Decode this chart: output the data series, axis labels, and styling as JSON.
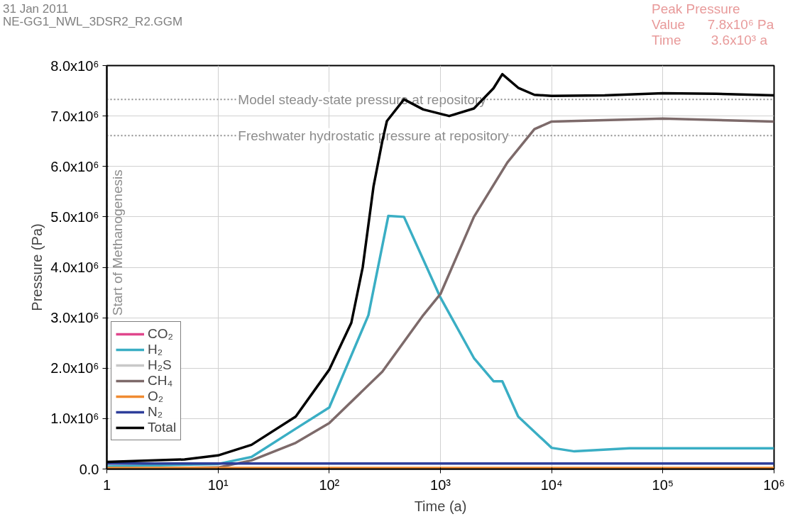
{
  "chart_data": {
    "type": "line",
    "xlabel": "Time (a)",
    "ylabel": "Pressure (Pa)",
    "log": "x",
    "grid": true,
    "legend": "bottom left",
    "line_style": "solid",
    "marker": "none",
    "xlim": [
      1,
      1000000
    ],
    "xticks": [
      1,
      {
        "value": 10,
        "label": "10¹"
      },
      {
        "value": 100,
        "label": "10²"
      },
      {
        "value": 1000,
        "label": "10³"
      },
      {
        "value": 10000,
        "label": "10⁴"
      },
      {
        "value": 100000,
        "label": "10⁵"
      },
      {
        "value": 1000000,
        "label": "10⁶"
      }
    ],
    "ylim": [
      0,
      8000000
    ],
    "yticks": [
      {
        "value": 0,
        "label": "0.0"
      },
      {
        "value": 1000000,
        "label": "1.0x10⁶"
      },
      {
        "value": 2000000,
        "label": "2.0x10⁶"
      },
      {
        "value": 3000000,
        "label": "3.0x10⁶"
      },
      {
        "value": 4000000,
        "label": "4.0x10⁶"
      },
      {
        "value": 5000000,
        "label": "5.0x10⁶"
      },
      {
        "value": 6000000,
        "label": "6.0x10⁶"
      },
      {
        "value": 7000000,
        "label": "7.0x10⁶"
      },
      {
        "value": 8000000,
        "label": "8.0x10⁶"
      }
    ],
    "series": [
      {
        "name": "CO₂",
        "color": "#e0468c",
        "values": [
          null
        ]
      },
      {
        "name": "H₂",
        "color": "#3aaec4",
        "x": [
          1,
          10,
          20,
          50,
          100,
          225,
          340,
          470,
          1000,
          2000,
          3000,
          3600,
          5000,
          10000,
          16000,
          50000,
          1000000
        ],
        "values": [
          50000,
          100000,
          240000,
          800000,
          1220000,
          3050000,
          5020000,
          5000000,
          3400000,
          2200000,
          1740000,
          1740000,
          1040000,
          420000,
          350000,
          410000,
          410000
        ]
      },
      {
        "name": "H₂S",
        "color": "#c8c8c8",
        "values": [
          null
        ]
      },
      {
        "name": "CH₄",
        "color": "#7d6a6a",
        "x": [
          1,
          10,
          20,
          50,
          100,
          300,
          700,
          1000,
          2000,
          4000,
          7000,
          10000,
          100000,
          1000000
        ],
        "values": [
          0,
          30000,
          170000,
          520000,
          910000,
          1930000,
          3050000,
          3470000,
          5000000,
          6080000,
          6740000,
          6890000,
          6950000,
          6890000
        ]
      },
      {
        "name": "O₂",
        "color": "#f08a30",
        "x": [
          1,
          1000000
        ],
        "values": [
          20000,
          20000
        ]
      },
      {
        "name": "N₂",
        "color": "#2e3e9a",
        "x": [
          1,
          1000000
        ],
        "values": [
          110000,
          110000
        ]
      },
      {
        "name": "Total",
        "color": "#000000",
        "x": [
          1,
          5,
          10,
          20,
          50,
          100,
          158,
          200,
          250,
          300,
          330,
          470,
          700,
          1200,
          2000,
          3000,
          3600,
          5000,
          7000,
          10000,
          30000,
          100000,
          300000,
          1000000
        ],
        "values": [
          140000,
          190000,
          270000,
          480000,
          1040000,
          1970000,
          2900000,
          4000000,
          5600000,
          6500000,
          6900000,
          7330000,
          7130000,
          7000000,
          7150000,
          7550000,
          7830000,
          7560000,
          7420000,
          7400000,
          7410000,
          7450000,
          7440000,
          7410000
        ]
      }
    ],
    "ref_lines": [
      {
        "axis": "y",
        "value": 7330000,
        "label": "Model steady-state pressure at repository",
        "color": "#8c8c8c",
        "line_style": "dotted"
      },
      {
        "axis": "y",
        "value": 6610000,
        "label": "Freshwater hydrostatic pressure at repository",
        "color": "#8c8c8c",
        "line_style": "dotted"
      },
      {
        "axis": "x",
        "value": 1,
        "label": "Start of Methanogenesis",
        "color": "#8c8c8c",
        "line_style": "dashed"
      }
    ],
    "annotations": [
      "31 Jan 2011",
      "NE-GG1_NWL_3DSR2_R2.GGM",
      "Peak Pressure",
      "Value      7.8x10⁶ Pa",
      "Time        3.6x10³ a"
    ]
  }
}
